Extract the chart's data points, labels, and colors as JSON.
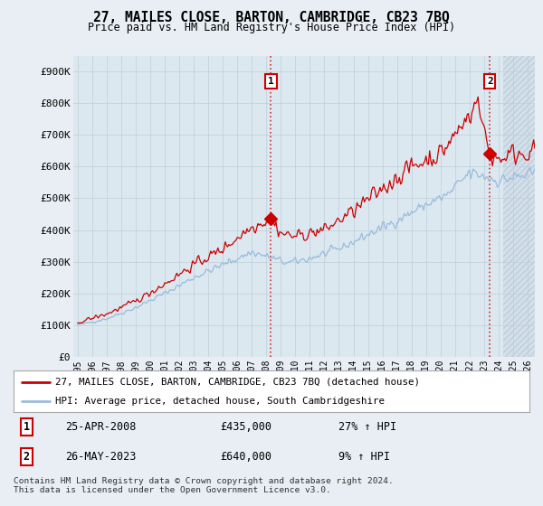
{
  "title": "27, MAILES CLOSE, BARTON, CAMBRIDGE, CB23 7BQ",
  "subtitle": "Price paid vs. HM Land Registry's House Price Index (HPI)",
  "ylabel_ticks": [
    "£0",
    "£100K",
    "£200K",
    "£300K",
    "£400K",
    "£500K",
    "£600K",
    "£700K",
    "£800K",
    "£900K"
  ],
  "ytick_vals": [
    0,
    100000,
    200000,
    300000,
    400000,
    500000,
    600000,
    700000,
    800000,
    900000
  ],
  "ylim": [
    0,
    950000
  ],
  "xlim_start": 1994.7,
  "xlim_end": 2026.5,
  "xtick_years": [
    1995,
    1996,
    1997,
    1998,
    1999,
    2000,
    2001,
    2002,
    2003,
    2004,
    2005,
    2006,
    2007,
    2008,
    2009,
    2010,
    2011,
    2012,
    2013,
    2014,
    2015,
    2016,
    2017,
    2018,
    2019,
    2020,
    2021,
    2022,
    2023,
    2024,
    2025,
    2026
  ],
  "marker1_x": 2008.32,
  "marker1_y": 435000,
  "marker2_x": 2023.4,
  "marker2_y": 640000,
  "marker1_label": "1",
  "marker2_label": "2",
  "marker1_date": "25-APR-2008",
  "marker1_price": "£435,000",
  "marker1_hpi": "27% ↑ HPI",
  "marker2_date": "26-MAY-2023",
  "marker2_price": "£640,000",
  "marker2_hpi": "9% ↑ HPI",
  "line1_color": "#cc0000",
  "line2_color": "#99bbdd",
  "line1_label": "27, MAILES CLOSE, BARTON, CAMBRIDGE, CB23 7BQ (detached house)",
  "line2_label": "HPI: Average price, detached house, South Cambridgeshire",
  "footer": "Contains HM Land Registry data © Crown copyright and database right 2024.\nThis data is licensed under the Open Government Licence v3.0.",
  "bg_color": "#e8eef4",
  "plot_bg_color": "#dce8f0",
  "grid_color": "#c0cdd8",
  "hatch_start": 2024.3,
  "hatch_color": "#c8d8e8"
}
